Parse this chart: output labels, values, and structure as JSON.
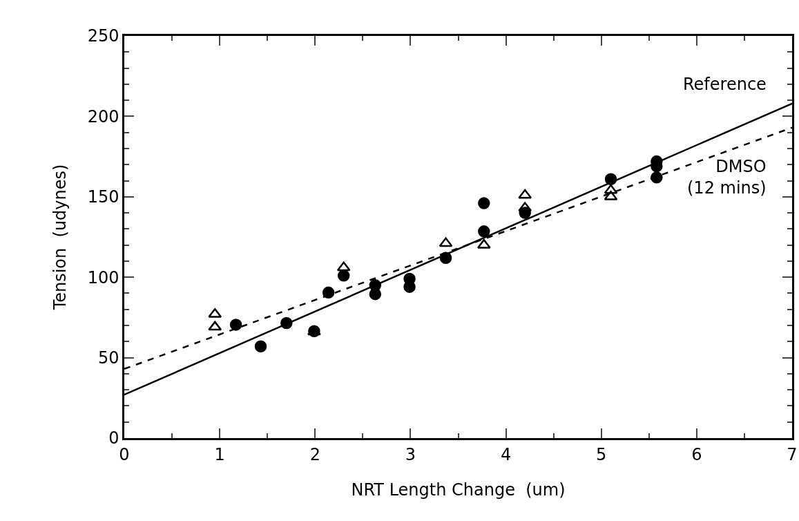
{
  "chart_data": {
    "type": "scatter",
    "xlabel": "NRT Length Change  (um)",
    "ylabel": "Tension  (udynes)",
    "xlim": [
      0,
      7
    ],
    "xticks": [
      0,
      1,
      2,
      3,
      4,
      5,
      6,
      7
    ],
    "ylim": [
      0,
      250
    ],
    "yticks": [
      0,
      50,
      100,
      150,
      200,
      250
    ],
    "grid": false,
    "series": [
      {
        "type": "scatter",
        "marker": "circle",
        "color": "#000000",
        "x": [
          1.17,
          1.43,
          1.7,
          1.99,
          2.14,
          2.3,
          2.63,
          2.63,
          2.99,
          2.99,
          3.37,
          3.77,
          3.77,
          4.2,
          5.1,
          5.58,
          5.58,
          5.58
        ],
        "values": [
          70.5,
          57,
          71.5,
          66.5,
          90.5,
          101,
          95,
          89.5,
          99,
          94,
          112,
          146,
          128.5,
          140,
          161,
          172,
          169,
          162
        ]
      },
      {
        "type": "scatter",
        "marker": "triangle",
        "color": "#000000",
        "x": [
          0.95,
          0.95,
          1.99,
          2.3,
          3.37,
          3.77,
          4.2,
          4.2,
          5.1,
          5.1
        ],
        "values": [
          77,
          69,
          66,
          106,
          121,
          120,
          151,
          143,
          154,
          150
        ]
      },
      {
        "type": "line",
        "name": "Reference",
        "marker": "none",
        "line_style": "solid",
        "color": "#000000",
        "x": [
          0,
          7
        ],
        "values": [
          27,
          208
        ]
      },
      {
        "type": "line",
        "name": "DMSO\n(12 mins)",
        "marker": "none",
        "line_style": "dashed",
        "color": "#000000",
        "x": [
          0,
          7
        ],
        "values": [
          43,
          193
        ]
      }
    ]
  }
}
